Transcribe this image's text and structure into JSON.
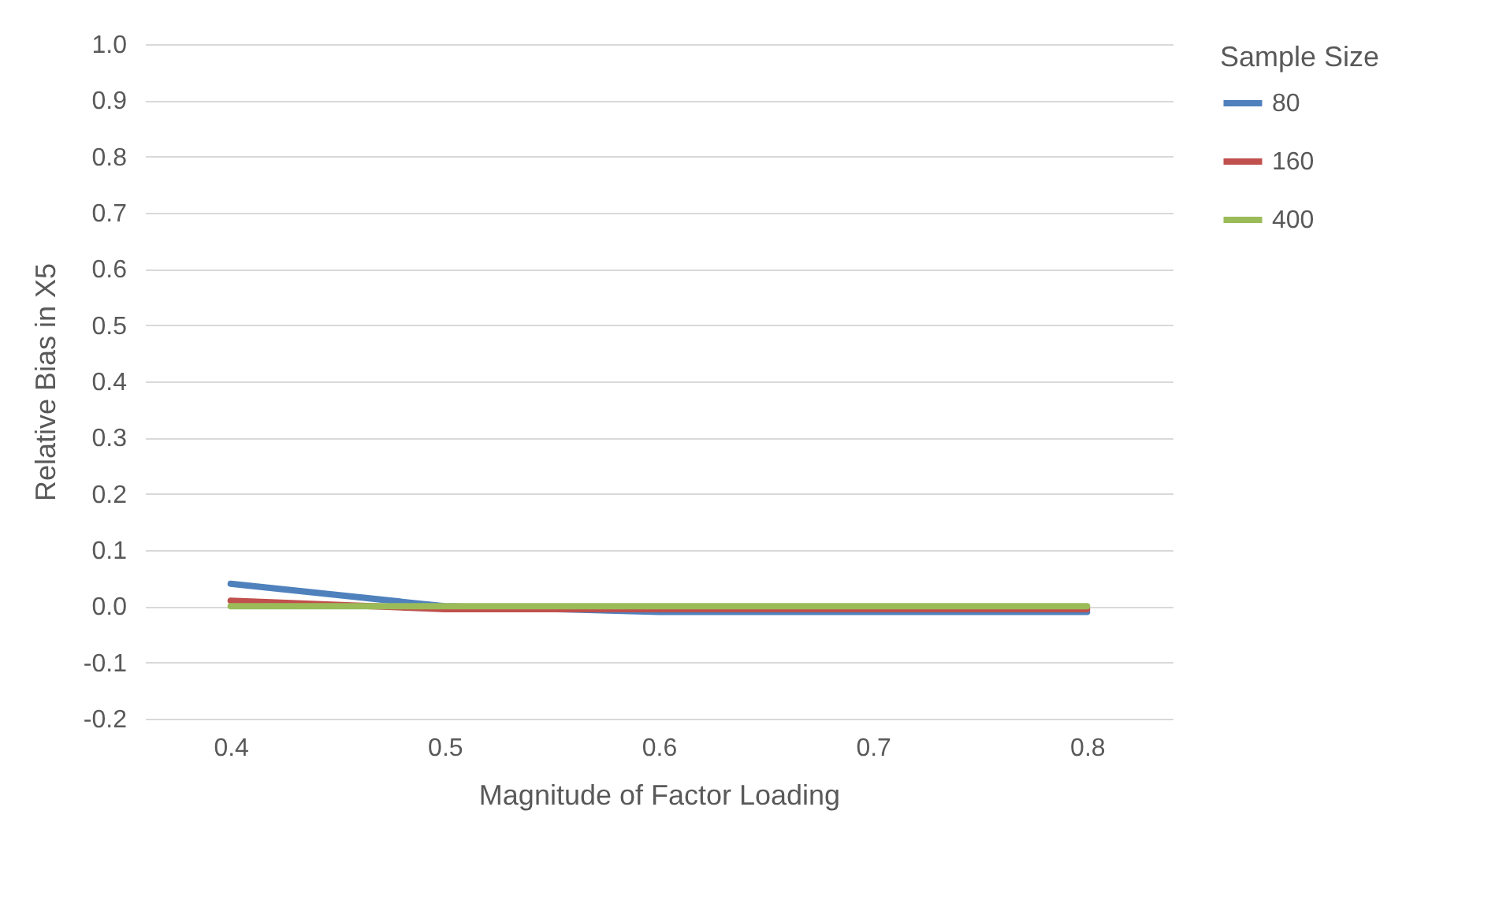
{
  "chart_data": {
    "type": "line",
    "xlabel": "Magnitude of Factor Loading",
    "ylabel": "Relative Bias in X5",
    "legend_title": "Sample Size",
    "categories": [
      "0.4",
      "0.5",
      "0.6",
      "0.7",
      "0.8"
    ],
    "series": [
      {
        "name": "80",
        "color": "#4f81bd",
        "values": [
          0.04,
          0,
          -0.01,
          -0.01,
          -0.01
        ]
      },
      {
        "name": "160",
        "color": "#c0504d",
        "values": [
          0.01,
          -0.005,
          -0.005,
          -0.005,
          -0.005
        ]
      },
      {
        "name": "400",
        "color": "#9bbb59",
        "values": [
          0,
          0,
          0,
          0,
          0
        ]
      }
    ],
    "ylim": [
      -0.2,
      1.0
    ],
    "yticks": [
      {
        "value": -0.2,
        "label": "-0.2"
      },
      {
        "value": -0.1,
        "label": "-0.1"
      },
      {
        "value": 0,
        "label": "0.0"
      },
      {
        "value": 0.1,
        "label": "0.1"
      },
      {
        "value": 0.2,
        "label": "0.2"
      },
      {
        "value": 0.3,
        "label": "0.3"
      },
      {
        "value": 0.4,
        "label": "0.4"
      },
      {
        "value": 0.5,
        "label": "0.5"
      },
      {
        "value": 0.6,
        "label": "0.6"
      },
      {
        "value": 0.7,
        "label": "0.7"
      },
      {
        "value": 0.8,
        "label": "0.8"
      },
      {
        "value": 0.9,
        "label": "0.9"
      },
      {
        "value": 1.0,
        "label": "1.0"
      }
    ],
    "grid": "y",
    "legend": "right",
    "marker": "none",
    "line_style": "solid"
  }
}
